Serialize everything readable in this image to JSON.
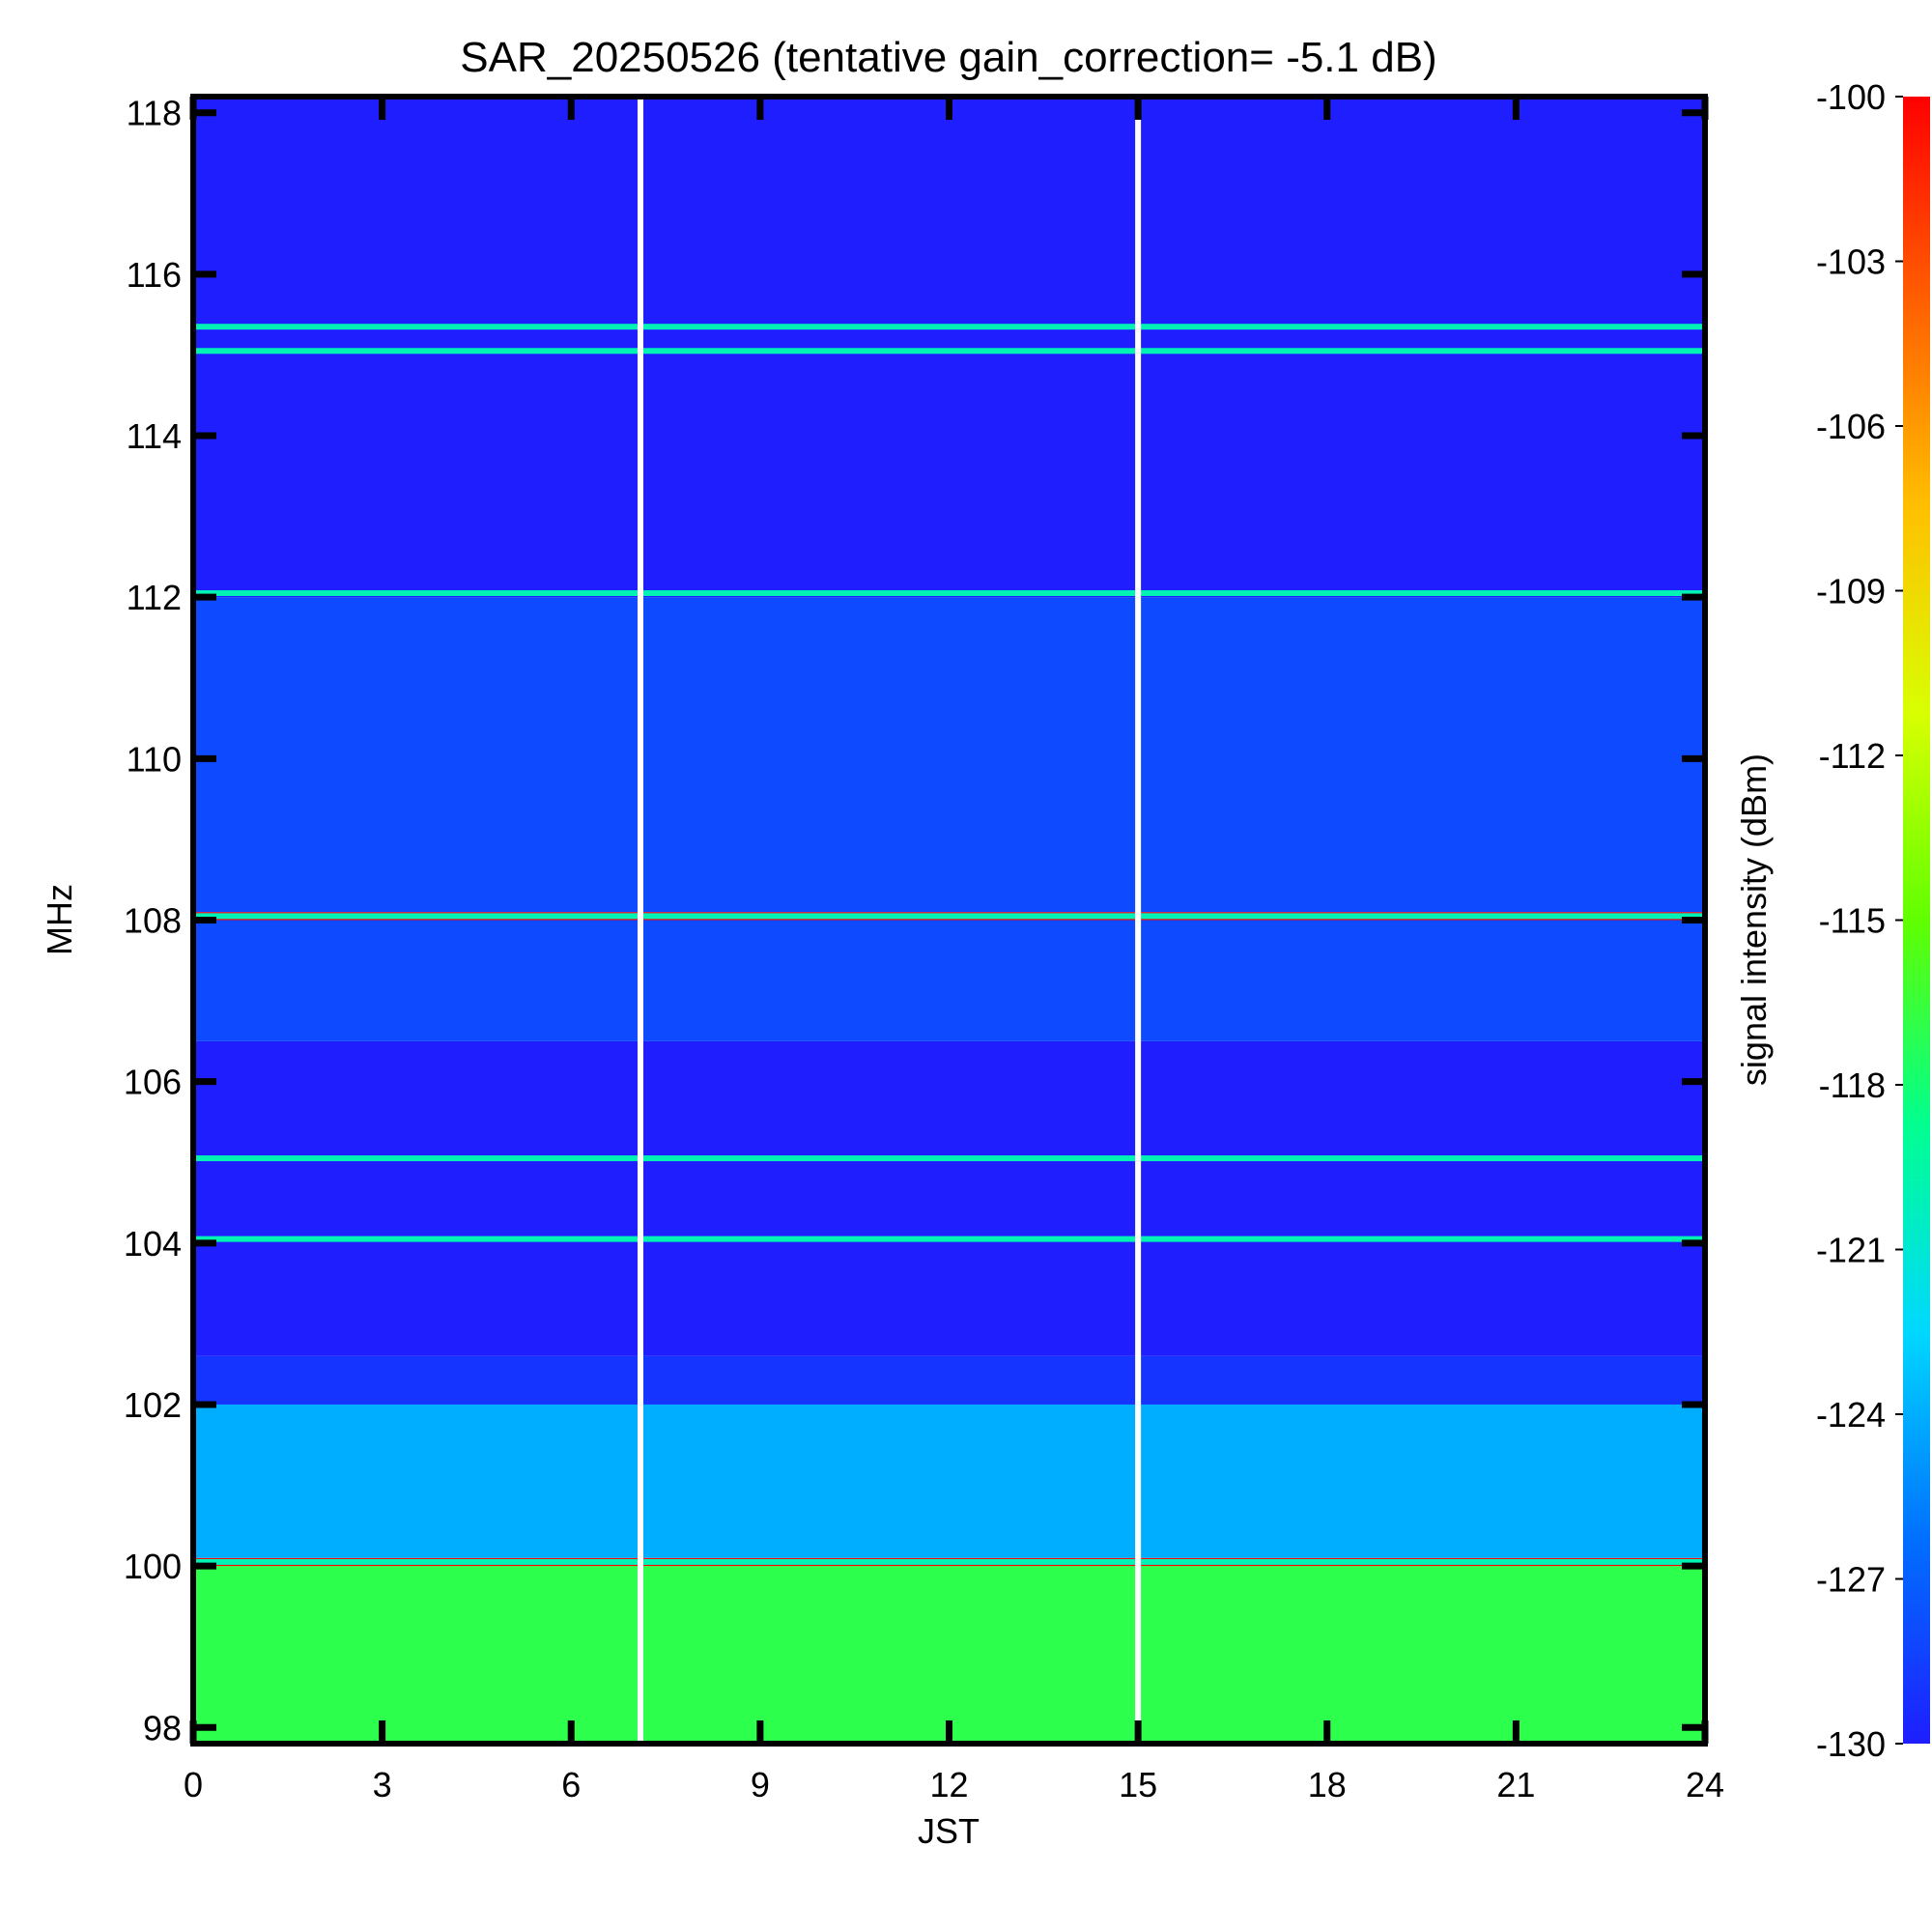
{
  "chart_data": {
    "type": "heatmap",
    "title": "SAR_20250526 (tentative gain_correction= -5.1 dB)",
    "xlabel": "JST",
    "ylabel": "MHz",
    "colorbar_label": "signal intensity (dBm)",
    "xlim": [
      0,
      24
    ],
    "ylim": [
      97.8,
      118.2
    ],
    "x_ticks": [
      "0",
      "3",
      "6",
      "9",
      "12",
      "15",
      "18",
      "21",
      "24"
    ],
    "y_ticks": [
      "98",
      "100",
      "102",
      "104",
      "106",
      "108",
      "110",
      "112",
      "114",
      "116",
      "118"
    ],
    "colorbar_range": [
      -130,
      -100
    ],
    "colorbar_ticks": [
      "-100",
      "-103",
      "-106",
      "-109",
      "-112",
      "-115",
      "-118",
      "-121",
      "-124",
      "-127",
      "-130"
    ],
    "colormap": [
      "#1e1eff",
      "#0070ff",
      "#00d8ff",
      "#00ff90",
      "#60ff00",
      "#d8ff00",
      "#ffc000",
      "#ff6000",
      "#ff0000"
    ],
    "data_gaps_jst": [
      7.1,
      15.0
    ],
    "bands": [
      {
        "from_mhz": 97.8,
        "to_mhz": 100.0,
        "level_dbm": -117
      },
      {
        "from_mhz": 100.0,
        "to_mhz": 100.1,
        "level_dbm": -100
      },
      {
        "from_mhz": 100.1,
        "to_mhz": 102.0,
        "level_dbm": -124
      },
      {
        "from_mhz": 102.0,
        "to_mhz": 102.6,
        "level_dbm": -129
      },
      {
        "from_mhz": 102.6,
        "to_mhz": 106.5,
        "level_dbm": -130
      },
      {
        "from_mhz": 106.5,
        "to_mhz": 108.0,
        "level_dbm": -128
      },
      {
        "from_mhz": 108.0,
        "to_mhz": 108.1,
        "level_dbm": -100
      },
      {
        "from_mhz": 108.1,
        "to_mhz": 112.0,
        "level_dbm": -128
      },
      {
        "from_mhz": 112.0,
        "to_mhz": 118.2,
        "level_dbm": -130
      }
    ],
    "persistent_lines_mhz": [
      100.05,
      104.05,
      105.05,
      108.05,
      112.05,
      115.05,
      115.35
    ],
    "grid": false,
    "legend": "colorbar right"
  }
}
